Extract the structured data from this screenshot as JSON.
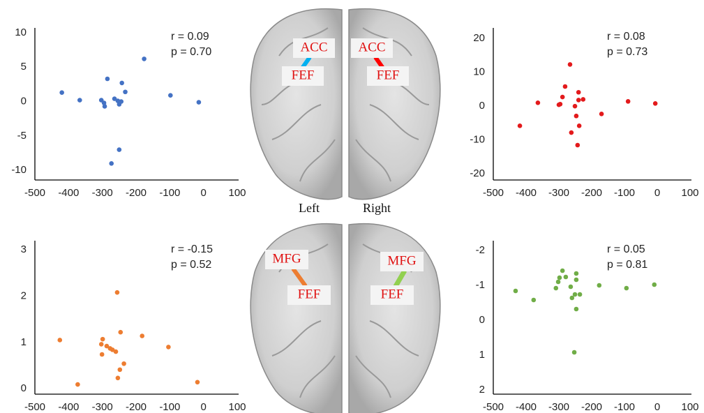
{
  "chart_data": [
    {
      "type": "scatter",
      "color": "#4472c4",
      "annotations": [
        "r = 0.09",
        "p = 0.70"
      ],
      "x": [
        -420,
        -367,
        -285,
        -303,
        -295,
        -293,
        -264,
        -254,
        -250,
        -244,
        -242,
        -232,
        -176,
        -98,
        -14,
        -250,
        -273
      ],
      "y": [
        1.3,
        0.2,
        3.3,
        0.2,
        -0.2,
        -0.7,
        0.4,
        0.1,
        -0.4,
        0,
        2.7,
        1.4,
        6.2,
        0.9,
        -0.1,
        -7,
        -9
      ],
      "xlim": [
        -500,
        100
      ],
      "ylim": [
        -11.4,
        10.7
      ],
      "xticks": [
        -500,
        -400,
        -300,
        -200,
        -100,
        0,
        100
      ],
      "yticks": [
        10,
        5,
        0,
        -5,
        -10
      ]
    },
    {
      "type": "scatter",
      "color": "#e31a1c",
      "annotations": [
        "r = 0.08",
        "p = 0.73"
      ],
      "x": [
        -419,
        -364,
        -296,
        -289,
        -300,
        -281,
        -266,
        -262,
        -251,
        -247,
        -240,
        -240,
        -238,
        -243,
        -226,
        -170,
        -89,
        -6
      ],
      "y": [
        -5.8,
        1,
        0.6,
        2.7,
        0.4,
        5.8,
        12.3,
        -7.8,
        0,
        -2.9,
        4.1,
        1.8,
        -5.8,
        -11.5,
        2,
        -2.3,
        1.4,
        0.8
      ],
      "xlim": [
        -500,
        100
      ],
      "ylim": [
        -21.8,
        23.1
      ],
      "xticks": [
        -500,
        -400,
        -300,
        -200,
        -100,
        0,
        100
      ],
      "yticks": [
        20,
        10,
        0,
        -10,
        -20
      ]
    },
    {
      "type": "scatter",
      "color": "#ed7d31",
      "annotations": [
        "r = -0.15",
        "p = 0.52"
      ],
      "x": [
        -426,
        -373,
        -303,
        -299,
        -301,
        -287,
        -277,
        -270,
        -260,
        -256,
        -254,
        -248,
        -246,
        -236,
        -182,
        -104,
        -18
      ],
      "y": [
        1.05,
        0.09,
        0.96,
        1.07,
        0.74,
        0.92,
        0.87,
        0.84,
        0.8,
        2.08,
        0.23,
        0.41,
        1.22,
        0.54,
        1.14,
        0.9,
        0.14
      ],
      "xlim": [
        -500,
        100
      ],
      "ylim": [
        -0.12,
        3.2
      ],
      "xticks": [
        -500,
        -400,
        -300,
        -200,
        -100,
        0,
        100
      ],
      "yticks": [
        3,
        2,
        1,
        0
      ]
    },
    {
      "type": "scatter",
      "color": "#70ad47",
      "annotations": [
        "r = 0.05",
        "p = 0.81"
      ],
      "x": [
        -432,
        -377,
        -309,
        -302,
        -298,
        -289,
        -279,
        -264,
        -260,
        -247,
        -247,
        -247,
        -251,
        -236,
        -253,
        -177,
        -94,
        -9
      ],
      "y": [
        -0.84,
        -0.58,
        -0.92,
        -1.1,
        -1.22,
        -1.42,
        -1.24,
        -0.96,
        -0.64,
        -1.34,
        -1.16,
        -0.32,
        -0.74,
        -0.74,
        0.92,
        -1.0,
        -0.92,
        -1.02
      ],
      "xlim": [
        -500,
        100
      ],
      "ylim": [
        2.12,
        -2.28
      ],
      "xticks": [
        -500,
        -400,
        -300,
        -200,
        -100,
        0,
        100
      ],
      "yticks": [
        -2,
        -1,
        0,
        1,
        2
      ]
    }
  ],
  "brain": {
    "top": [
      "ACC",
      "FEF",
      "ACC",
      "FEF"
    ],
    "bottom": [
      "MFG",
      "FEF",
      "MFG",
      "FEF"
    ],
    "sides": [
      "Left",
      "Right"
    ]
  }
}
